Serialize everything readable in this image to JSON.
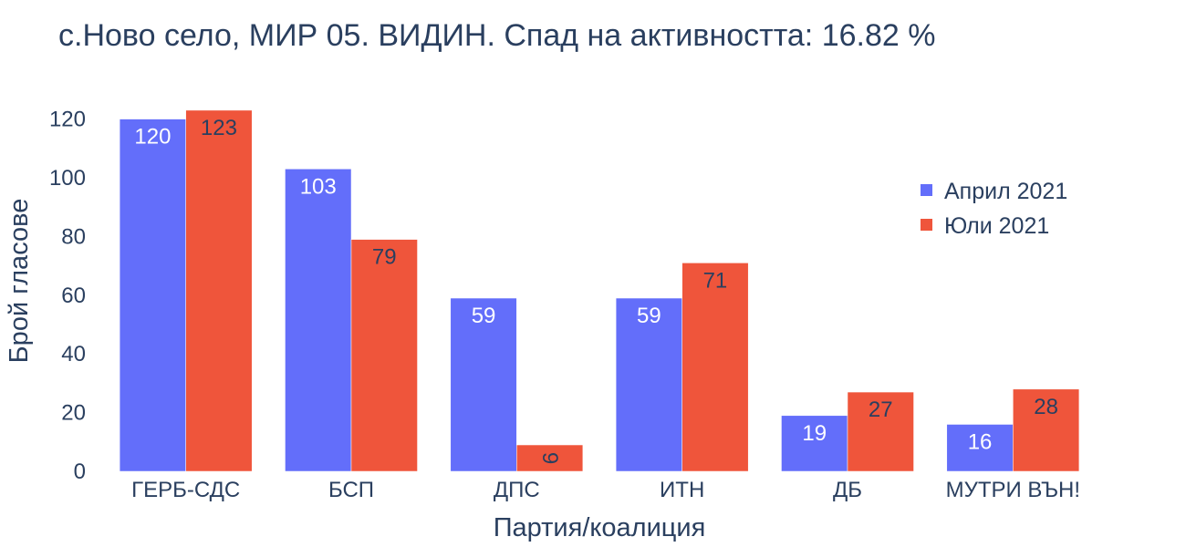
{
  "chart_data": {
    "type": "bar",
    "title": "с.Ново село, МИР 05. ВИДИН. Спад на активността: 16.82 %",
    "xlabel": "Партия/коалиция",
    "ylabel": "Брой гласове",
    "categories": [
      "ГЕРБ-СДС",
      "БСП",
      "ДПС",
      "ИТН",
      "ДБ",
      "МУТРИ ВЪН!"
    ],
    "series": [
      {
        "name": "Април 2021",
        "color": "#636efa",
        "label_color": "#ffffff",
        "values": [
          120,
          103,
          59,
          59,
          19,
          16
        ]
      },
      {
        "name": "Юли 2021",
        "color": "#ef553b",
        "label_color": "#2a3f5f",
        "values": [
          123,
          79,
          9,
          71,
          27,
          28
        ]
      }
    ],
    "ylim": [
      0,
      129.5
    ],
    "yticks": [
      0,
      20,
      40,
      60,
      80,
      100,
      120
    ],
    "grid": false,
    "legend_position": "top-right"
  }
}
